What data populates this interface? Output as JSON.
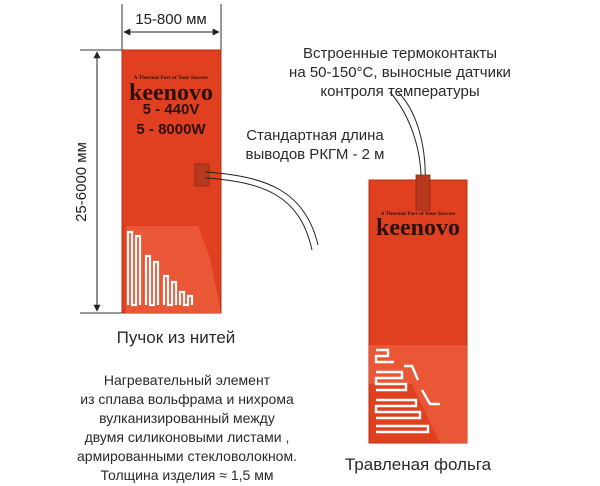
{
  "dimensions": {
    "width_label": "15-800 мм",
    "height_label": "25-6000 мм"
  },
  "heater_left": {
    "color": "#e04020",
    "tagline": "A Thermal Part of Your Success",
    "brand": "keenovo",
    "voltage": "5 - 440V",
    "power": "5 - 8000W",
    "caption": "Пучок из нитей"
  },
  "heater_right": {
    "color": "#e04020",
    "tagline": "A Thermal Part of Your Success",
    "brand": "keenovo",
    "caption": "Травленая фольга"
  },
  "annotations": {
    "thermocontacts": [
      "Встроенные термоконтакты",
      "на 50-150°С, выносные датчики",
      "контроля температуры"
    ],
    "lead_length": [
      "Стандартная длина",
      "выводов РКГМ - 2 м"
    ],
    "description": [
      "Нагревательный элемент",
      "из сплава вольфрама и нихрома",
      "вулканизированный между",
      "двумя силиконовыми листами ,",
      "армированными стекловолокном.",
      "Толщина изделия ≈ 1,5 мм"
    ]
  }
}
